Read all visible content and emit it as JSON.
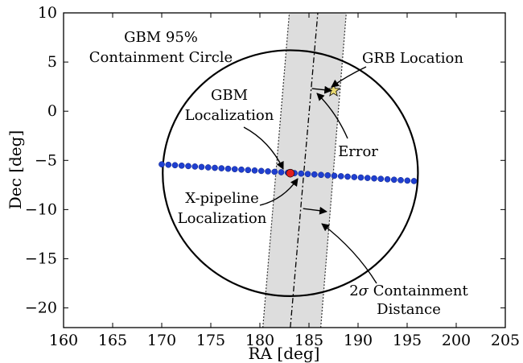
{
  "chart_data": {
    "type": "scatter",
    "title": "",
    "xlabel": "RA [deg]",
    "ylabel": "Dec [deg]",
    "xlim": [
      160,
      205
    ],
    "ylim": [
      -22,
      10
    ],
    "xticks": [
      "160",
      "165",
      "170",
      "175",
      "180",
      "185",
      "190",
      "195",
      "200",
      "205"
    ],
    "yticks": [
      "10",
      "5",
      "0",
      "−5",
      "−10",
      "−15",
      "−20"
    ],
    "grid": false,
    "legend": "none",
    "colors": {
      "band_fill": "#dddddd",
      "scan_points": "#1f3fd0",
      "gbm_point": "#e02020",
      "grb_star": "#e8d870"
    },
    "containment_circle": {
      "center": [
        183.1,
        -6.3
      ],
      "radius_ra": 13.0,
      "radius_dec": 12.5
    },
    "containment_band": {
      "center_line": {
        "start": [
          183.1,
          -22
        ],
        "end": [
          185.9,
          10
        ]
      },
      "left_edge": {
        "start": [
          180.3,
          -22
        ],
        "end": [
          183.0,
          10
        ]
      },
      "right_edge": {
        "start": [
          186.2,
          -22
        ],
        "end": [
          188.8,
          10
        ]
      }
    },
    "scan_line": {
      "ra_start": 170.0,
      "dec_start": -5.4,
      "ra_end": 195.7,
      "dec_end": -7.1,
      "n_points": 39
    },
    "gbm_localization": {
      "ra": 183.1,
      "dec": -6.3
    },
    "xpipeline_localization": {
      "ra": 184.1,
      "dec": -6.4
    },
    "grb_location": {
      "ra": 187.5,
      "dec": 2.1
    },
    "error_vector": {
      "start": [
        185.3,
        2.3
      ],
      "end": [
        187.3,
        2.1
      ]
    },
    "two_sigma_vector": {
      "start": [
        184.4,
        -9.9
      ],
      "end": [
        186.8,
        -10.2
      ]
    },
    "annotations": {
      "gbm_circle": [
        "GBM 95%",
        "Containment Circle"
      ],
      "grb_location": "GRB Location",
      "gbm_localization": [
        "GBM",
        "Localization"
      ],
      "error": "Error",
      "xpipeline": [
        "X-pipeline",
        "Localization"
      ],
      "two_sigma_prefix": "2",
      "two_sigma_symbol": "σ",
      "two_sigma_rest": " Containment",
      "two_sigma_line2": "Distance"
    }
  }
}
